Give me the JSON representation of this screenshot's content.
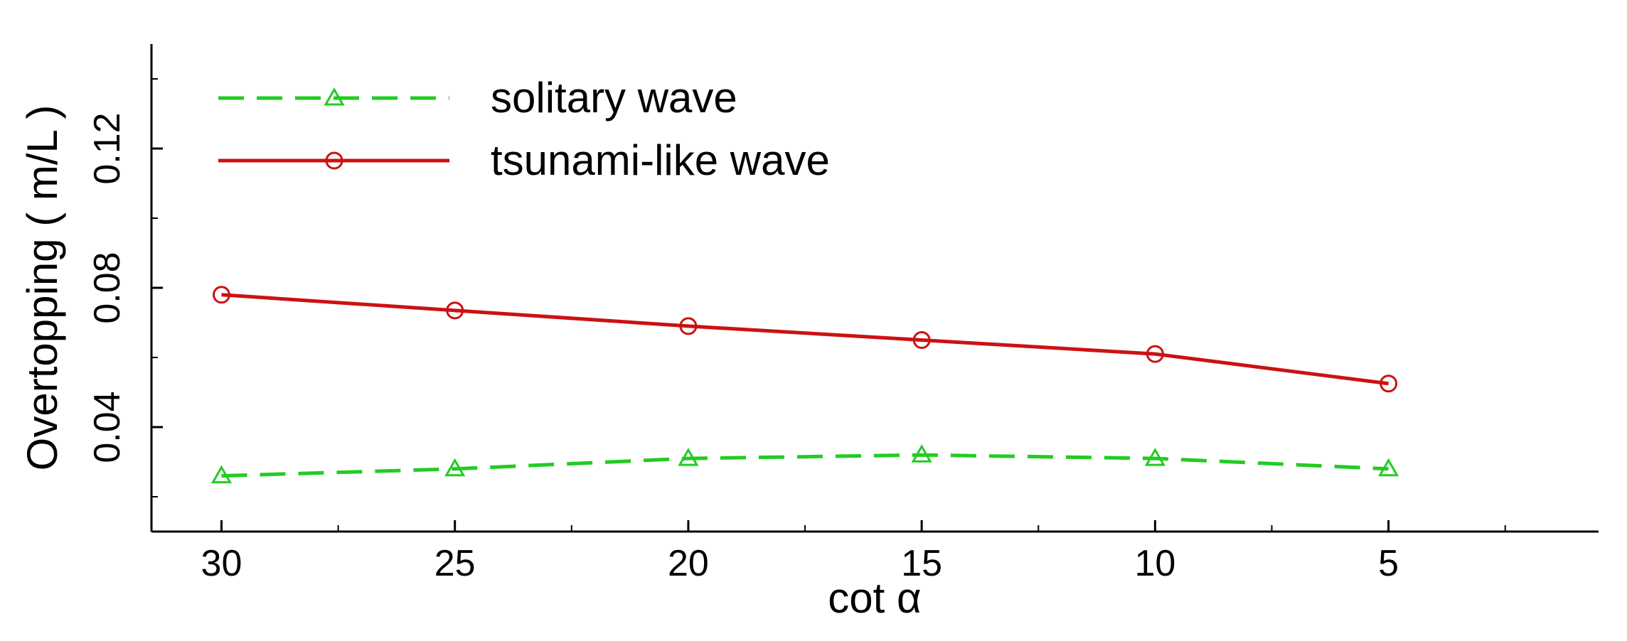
{
  "chart_data": {
    "type": "line",
    "title": "",
    "xlabel": "cot α",
    "ylabel": "Overtopping ( m/L )",
    "x": [
      30,
      25,
      20,
      15,
      10,
      5
    ],
    "x_ticks": [
      "30",
      "25",
      "20",
      "15",
      "10",
      "5"
    ],
    "y_ticks": [
      "0.04",
      "0.08",
      "0.12"
    ],
    "xlim": [
      31.5,
      0.5
    ],
    "x_reversed": true,
    "ylim": [
      0.01,
      0.15
    ],
    "grid": false,
    "legend_position": "top-left",
    "series": [
      {
        "name": "solitary  wave",
        "values": [
          0.026,
          0.028,
          0.031,
          0.032,
          0.031,
          0.028
        ],
        "color": "#22cc22",
        "line_style": "dashed",
        "marker": "triangle"
      },
      {
        "name": "tsunami-like wave",
        "values": [
          0.078,
          0.0735,
          0.069,
          0.065,
          0.061,
          0.0525
        ],
        "color": "#cc1111",
        "line_style": "solid",
        "marker": "circle"
      }
    ]
  }
}
